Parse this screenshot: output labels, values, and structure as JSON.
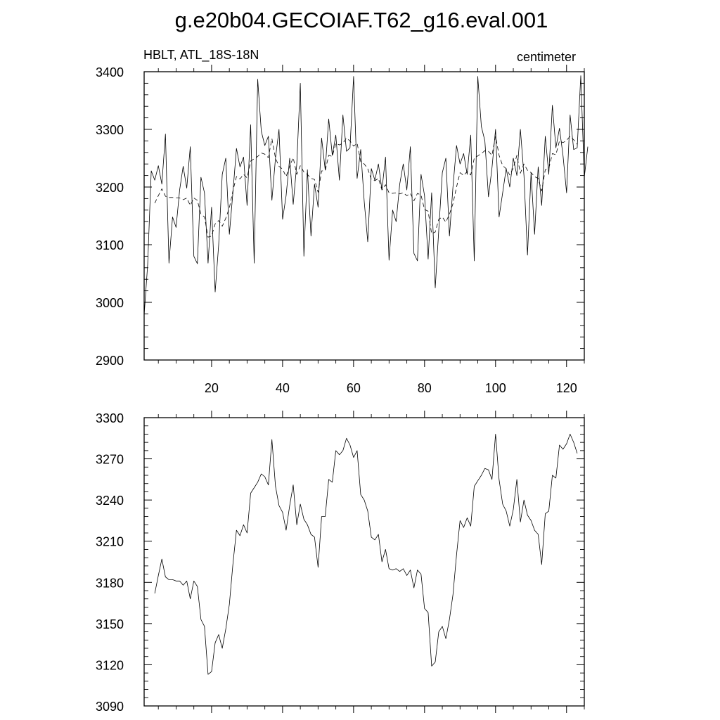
{
  "title": "g.e20b04.GECOIAF.T62_g16.eval.001",
  "panel_left_label": "HBLT, ATL_18S-18N",
  "panel_right_label": "centimeter",
  "chart_data": [
    {
      "type": "line",
      "title": "g.e20b04.GECOIAF.T62_g16.eval.001",
      "subtitle_left": "HBLT, ATL_18S-18N",
      "subtitle_right": "centimeter",
      "xlim": [
        1,
        125
      ],
      "ylim": [
        2900,
        3400
      ],
      "x_ticks": [
        20,
        40,
        60,
        80,
        100,
        120
      ],
      "x_tick_labels": [
        "20",
        "40",
        "60",
        "80",
        "100",
        "120"
      ],
      "y_ticks": [
        2900,
        3000,
        3100,
        3200,
        3300,
        3400
      ],
      "y_tick_labels": [
        "2900",
        "3000",
        "3100",
        "3200",
        "3300",
        "3400"
      ],
      "series": [
        {
          "style": "solid",
          "x_start": 1,
          "values": [
            2978,
            3065,
            3228,
            3212,
            3237,
            3205,
            3292,
            3068,
            3148,
            3130,
            3195,
            3236,
            3198,
            3270,
            3080,
            3067,
            3217,
            3190,
            3068,
            3165,
            3018,
            3100,
            3222,
            3250,
            3118,
            3190,
            3267,
            3235,
            3252,
            3168,
            3308,
            3068,
            3387,
            3297,
            3272,
            3288,
            3177,
            3250,
            3300,
            3144,
            3185,
            3250,
            3170,
            3240,
            3380,
            3080,
            3230,
            3115,
            3205,
            3165,
            3285,
            3230,
            3318,
            3255,
            3290,
            3212,
            3325,
            3262,
            3268,
            3392,
            3215,
            3265,
            3175,
            3105,
            3232,
            3212,
            3240,
            3195,
            3252,
            3073,
            3160,
            3140,
            3205,
            3240,
            3195,
            3270,
            3085,
            3072,
            3222,
            3185,
            3075,
            3190,
            3025,
            3125,
            3225,
            3250,
            3115,
            3200,
            3272,
            3240,
            3258,
            3222,
            3290,
            3072,
            3392,
            3305,
            3280,
            3183,
            3233,
            3300,
            3148,
            3190,
            3232,
            3200,
            3250,
            3220,
            3300,
            3220,
            3082,
            3225,
            3118,
            3235,
            3168,
            3288,
            3222,
            3342,
            3268,
            3302,
            3255,
            3190,
            3325,
            3265,
            3268,
            3393,
            3217,
            3270
          ]
        },
        {
          "style": "dashed",
          "x_start": 4,
          "values": [
            3172,
            3185,
            3197,
            3184,
            3182,
            3182,
            3181,
            3181,
            3178,
            3181,
            3168,
            3181,
            3177,
            3153,
            3148,
            3113,
            3115,
            3136,
            3142,
            3132,
            3146,
            3164,
            3193,
            3218,
            3214,
            3222,
            3216,
            3245,
            3249,
            3253,
            3259,
            3257,
            3251,
            3284,
            3250,
            3236,
            3231,
            3218,
            3236,
            3251,
            3222,
            3237,
            3226,
            3222,
            3215,
            3213,
            3191,
            3228,
            3228,
            3255,
            3253,
            3276,
            3273,
            3276,
            3285,
            3280,
            3271,
            3276,
            3244,
            3240,
            3232,
            3213,
            3211,
            3215,
            3195,
            3204,
            3190,
            3189,
            3190,
            3188,
            3190,
            3185,
            3189,
            3176,
            3189,
            3186,
            3161,
            3158,
            3119,
            3122,
            3144,
            3148,
            3139,
            3153,
            3171,
            3200,
            3225,
            3220,
            3227,
            3221,
            3250,
            3254,
            3258,
            3263,
            3262,
            3255,
            3288,
            3255,
            3237,
            3232,
            3221,
            3233,
            3255,
            3224,
            3240,
            3229,
            3225,
            3218,
            3215,
            3193,
            3230,
            3232,
            3258,
            3256,
            3280,
            3277,
            3281,
            3288,
            3282,
            3274
          ]
        }
      ]
    },
    {
      "type": "line",
      "xlim": [
        1,
        125
      ],
      "ylim": [
        3090,
        3300
      ],
      "x_ticks": [
        20,
        40,
        60,
        80,
        100,
        120
      ],
      "y_ticks": [
        3090,
        3120,
        3150,
        3180,
        3210,
        3240,
        3270,
        3300
      ],
      "y_tick_labels": [
        "3090",
        "3120",
        "3150",
        "3180",
        "3210",
        "3240",
        "3270",
        "3300"
      ],
      "series": [
        {
          "style": "solid",
          "x_start": 4,
          "values": [
            3172,
            3185,
            3197,
            3184,
            3182,
            3182,
            3181,
            3181,
            3178,
            3181,
            3168,
            3181,
            3177,
            3153,
            3148,
            3113,
            3115,
            3136,
            3142,
            3132,
            3146,
            3164,
            3193,
            3218,
            3214,
            3222,
            3216,
            3245,
            3249,
            3253,
            3259,
            3257,
            3251,
            3284,
            3250,
            3236,
            3231,
            3218,
            3236,
            3251,
            3222,
            3237,
            3226,
            3222,
            3215,
            3213,
            3191,
            3228,
            3228,
            3255,
            3253,
            3276,
            3273,
            3276,
            3285,
            3280,
            3271,
            3276,
            3244,
            3240,
            3232,
            3213,
            3211,
            3215,
            3195,
            3204,
            3190,
            3189,
            3190,
            3188,
            3190,
            3185,
            3189,
            3176,
            3189,
            3186,
            3161,
            3158,
            3119,
            3122,
            3144,
            3148,
            3139,
            3153,
            3171,
            3200,
            3225,
            3220,
            3227,
            3221,
            3250,
            3254,
            3258,
            3263,
            3262,
            3255,
            3288,
            3255,
            3237,
            3232,
            3221,
            3233,
            3255,
            3224,
            3240,
            3229,
            3225,
            3218,
            3215,
            3193,
            3230,
            3232,
            3258,
            3256,
            3280,
            3277,
            3281,
            3288,
            3282,
            3274
          ]
        }
      ]
    }
  ]
}
